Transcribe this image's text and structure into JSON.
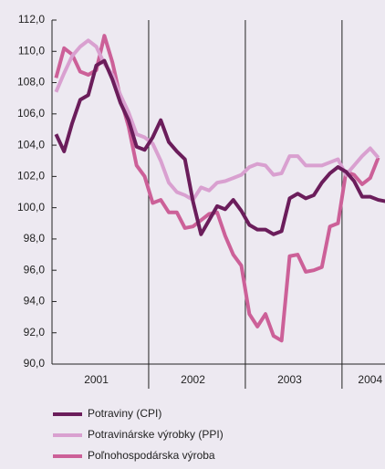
{
  "chart_data": {
    "type": "line",
    "categories": [
      null,
      null,
      null,
      null,
      null,
      "2001",
      null,
      null,
      null,
      null,
      null,
      null,
      null,
      null,
      null,
      null,
      null,
      "2002",
      null,
      null,
      null,
      null,
      null,
      null,
      null,
      null,
      null,
      null,
      null,
      "2003",
      null,
      null,
      null,
      null,
      null,
      null,
      null,
      null,
      null,
      "2004",
      null,
      null
    ],
    "series": [
      {
        "name": "Potraviny (CPI)",
        "color": "#6b1d5b",
        "values": [
          104.7,
          103.6,
          105.4,
          106.9,
          107.2,
          109.1,
          109.4,
          108.2,
          106.7,
          105.6,
          103.9,
          103.7,
          104.5,
          105.6,
          104.2,
          103.6,
          103.1,
          100.4,
          98.3,
          99.2,
          100.1,
          99.9,
          100.5,
          99.8,
          98.9,
          98.6,
          98.6,
          98.3,
          98.5,
          100.6,
          100.9,
          100.6,
          100.8,
          101.6,
          102.2,
          102.6,
          102.3,
          101.7,
          100.7,
          100.7,
          100.5,
          100.4
        ]
      },
      {
        "name": "Potravinárske výrobky (PPI)",
        "color": "#d9a0d0",
        "values": [
          107.4,
          108.6,
          109.7,
          110.3,
          110.7,
          110.3,
          109.2,
          108.5,
          107.2,
          106.1,
          104.7,
          104.5,
          104.1,
          103.0,
          101.6,
          101.0,
          100.8,
          100.5,
          101.3,
          101.1,
          101.6,
          101.7,
          101.9,
          102.1,
          102.6,
          102.8,
          102.7,
          102.1,
          102.2,
          103.3,
          103.3,
          102.7,
          102.7,
          102.7,
          102.9,
          103.1,
          102.1,
          102.7,
          103.3,
          103.8,
          103.2,
          null
        ]
      },
      {
        "name": "Poľnohospodárska výroba",
        "color": "#cc6098",
        "values": [
          108.3,
          110.2,
          109.8,
          108.7,
          108.5,
          108.8,
          111.0,
          109.3,
          107.0,
          105.2,
          102.7,
          102.0,
          100.3,
          100.5,
          99.7,
          99.7,
          98.7,
          98.8,
          99.2,
          99.6,
          99.7,
          98.2,
          97.0,
          96.3,
          93.2,
          92.4,
          93.2,
          91.8,
          91.5,
          96.9,
          97.0,
          95.9,
          96.0,
          96.2,
          98.8,
          99.0,
          102.3,
          102.1,
          101.5,
          101.9,
          103.2,
          null
        ]
      }
    ],
    "ylim": [
      90,
      112
    ],
    "yticks": [
      {
        "value": 90,
        "label": "90,0"
      },
      {
        "value": 92,
        "label": "92,0"
      },
      {
        "value": 94,
        "label": "94,0"
      },
      {
        "value": 96,
        "label": "96,0"
      },
      {
        "value": 98,
        "label": "98,0"
      },
      {
        "value": 100,
        "label": "100,0"
      },
      {
        "value": 102,
        "label": "102,0"
      },
      {
        "value": 104,
        "label": "104,0"
      },
      {
        "value": 106,
        "label": "106,0"
      },
      {
        "value": 108,
        "label": "108,0"
      },
      {
        "value": 110,
        "label": "110,0"
      },
      {
        "value": 112,
        "label": "112,0"
      }
    ],
    "legend": "bottom-left"
  }
}
